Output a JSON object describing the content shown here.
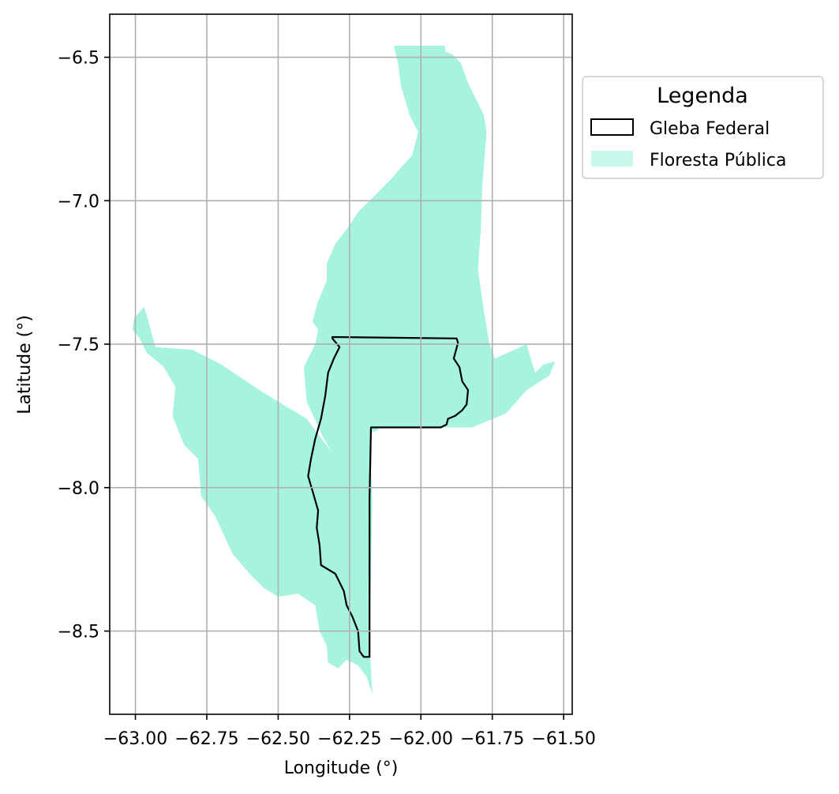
{
  "chart_data": {
    "type": "map",
    "xlabel": "Longitude (°)",
    "ylabel": "Latitude (°)",
    "xlim": [
      -63.09,
      -61.47
    ],
    "ylim": [
      -8.79,
      -6.35
    ],
    "x_ticks": [
      -63.0,
      -62.75,
      -62.5,
      -62.25,
      -62.0,
      -61.75,
      -61.5
    ],
    "x_tick_labels": [
      "−63.00",
      "−62.75",
      "−62.50",
      "−62.25",
      "−62.00",
      "−61.75",
      "−61.50"
    ],
    "y_ticks": [
      -6.5,
      -7.0,
      -7.5,
      -8.0,
      -8.5
    ],
    "y_tick_labels": [
      "−6.5",
      "−7.0",
      "−7.5",
      "−8.0",
      "−8.5"
    ],
    "grid": true,
    "legend": {
      "title": "Legenda",
      "placement": "outside-right-top",
      "entries": [
        {
          "label": "Gleba Federal",
          "style": "outline",
          "color": "#000000"
        },
        {
          "label": "Floresta Pública",
          "style": "fill",
          "color": "#a6f3df"
        }
      ]
    },
    "series": [
      {
        "name": "Floresta Pública",
        "kind": "polygon",
        "color": "#a6f3df",
        "coordinates": [
          [
            -62.095,
            -6.46
          ],
          [
            -61.915,
            -6.46
          ],
          [
            -61.915,
            -6.48
          ],
          [
            -61.89,
            -6.49
          ],
          [
            -61.86,
            -6.52
          ],
          [
            -61.835,
            -6.59
          ],
          [
            -61.81,
            -6.64
          ],
          [
            -61.78,
            -6.7
          ],
          [
            -61.77,
            -6.76
          ],
          [
            -61.775,
            -6.82
          ],
          [
            -61.785,
            -6.95
          ],
          [
            -61.79,
            -7.1
          ],
          [
            -61.8,
            -7.24
          ],
          [
            -61.78,
            -7.38
          ],
          [
            -61.76,
            -7.5
          ],
          [
            -61.74,
            -7.55
          ],
          [
            -61.63,
            -7.5
          ],
          [
            -61.6,
            -7.6
          ],
          [
            -61.57,
            -7.57
          ],
          [
            -61.53,
            -7.56
          ],
          [
            -61.55,
            -7.61
          ],
          [
            -61.63,
            -7.66
          ],
          [
            -61.7,
            -7.74
          ],
          [
            -61.82,
            -7.79
          ],
          [
            -61.93,
            -7.79
          ],
          [
            -62.08,
            -7.79
          ],
          [
            -62.15,
            -7.79
          ],
          [
            -62.15,
            -7.8
          ],
          [
            -62.18,
            -7.81
          ],
          [
            -62.17,
            -8.05
          ],
          [
            -62.175,
            -8.3
          ],
          [
            -62.18,
            -8.55
          ],
          [
            -62.17,
            -8.72
          ],
          [
            -62.19,
            -8.66
          ],
          [
            -62.22,
            -8.62
          ],
          [
            -62.26,
            -8.6
          ],
          [
            -62.29,
            -8.63
          ],
          [
            -62.325,
            -8.61
          ],
          [
            -62.33,
            -8.55
          ],
          [
            -62.355,
            -8.5
          ],
          [
            -62.37,
            -8.41
          ],
          [
            -62.43,
            -8.37
          ],
          [
            -62.5,
            -8.38
          ],
          [
            -62.55,
            -8.35
          ],
          [
            -62.6,
            -8.3
          ],
          [
            -62.66,
            -8.23
          ],
          [
            -62.72,
            -8.1
          ],
          [
            -62.77,
            -8.03
          ],
          [
            -62.78,
            -7.9
          ],
          [
            -62.83,
            -7.85
          ],
          [
            -62.87,
            -7.75
          ],
          [
            -62.86,
            -7.65
          ],
          [
            -62.9,
            -7.58
          ],
          [
            -62.96,
            -7.53
          ],
          [
            -62.985,
            -7.48
          ],
          [
            -63.01,
            -7.45
          ],
          [
            -63.005,
            -7.41
          ],
          [
            -62.97,
            -7.37
          ],
          [
            -62.96,
            -7.4
          ],
          [
            -62.93,
            -7.51
          ],
          [
            -62.8,
            -7.52
          ],
          [
            -62.7,
            -7.57
          ],
          [
            -62.55,
            -7.67
          ],
          [
            -62.4,
            -7.76
          ],
          [
            -62.31,
            -7.88
          ],
          [
            -62.34,
            -7.83
          ],
          [
            -62.4,
            -7.7
          ],
          [
            -62.41,
            -7.58
          ],
          [
            -62.37,
            -7.5
          ],
          [
            -62.36,
            -7.45
          ],
          [
            -62.38,
            -7.42
          ],
          [
            -62.36,
            -7.35
          ],
          [
            -62.33,
            -7.28
          ],
          [
            -62.33,
            -7.22
          ],
          [
            -62.3,
            -7.15
          ],
          [
            -62.26,
            -7.1
          ],
          [
            -62.22,
            -7.04
          ],
          [
            -62.17,
            -6.99
          ],
          [
            -62.1,
            -6.92
          ],
          [
            -62.03,
            -6.84
          ],
          [
            -62.01,
            -6.76
          ],
          [
            -62.04,
            -6.7
          ],
          [
            -62.07,
            -6.6
          ],
          [
            -62.08,
            -6.52
          ]
        ]
      },
      {
        "name": "Gleba Federal",
        "kind": "outline",
        "color": "#000000",
        "coordinates": [
          [
            -62.31,
            -7.475
          ],
          [
            -61.875,
            -7.48
          ],
          [
            -61.87,
            -7.495
          ],
          [
            -61.885,
            -7.55
          ],
          [
            -61.865,
            -7.58
          ],
          [
            -61.855,
            -7.63
          ],
          [
            -61.835,
            -7.66
          ],
          [
            -61.84,
            -7.71
          ],
          [
            -61.855,
            -7.73
          ],
          [
            -61.88,
            -7.75
          ],
          [
            -61.905,
            -7.76
          ],
          [
            -61.91,
            -7.78
          ],
          [
            -61.93,
            -7.79
          ],
          [
            -62.175,
            -7.79
          ],
          [
            -62.18,
            -8.04
          ],
          [
            -62.18,
            -8.3
          ],
          [
            -62.18,
            -8.59
          ],
          [
            -62.2,
            -8.59
          ],
          [
            -62.215,
            -8.57
          ],
          [
            -62.22,
            -8.5
          ],
          [
            -62.24,
            -8.45
          ],
          [
            -62.26,
            -8.41
          ],
          [
            -62.27,
            -8.36
          ],
          [
            -62.3,
            -8.3
          ],
          [
            -62.35,
            -8.27
          ],
          [
            -62.355,
            -8.2
          ],
          [
            -62.365,
            -8.14
          ],
          [
            -62.36,
            -8.08
          ],
          [
            -62.38,
            -8.01
          ],
          [
            -62.395,
            -7.96
          ],
          [
            -62.385,
            -7.9
          ],
          [
            -62.37,
            -7.83
          ],
          [
            -62.35,
            -7.76
          ],
          [
            -62.335,
            -7.68
          ],
          [
            -62.325,
            -7.6
          ],
          [
            -62.305,
            -7.55
          ],
          [
            -62.285,
            -7.51
          ],
          [
            -62.31,
            -7.48
          ]
        ]
      }
    ]
  }
}
